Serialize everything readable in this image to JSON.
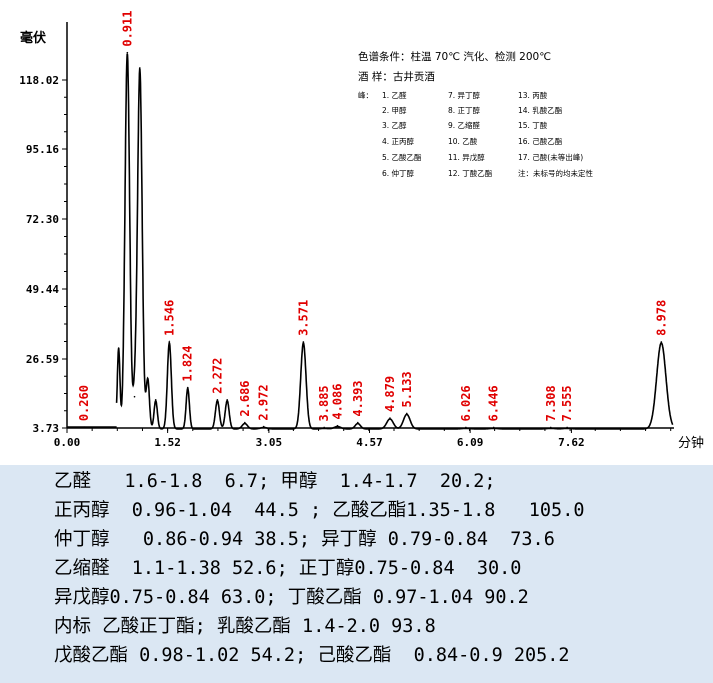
{
  "chart_data": {
    "type": "line",
    "ylabel": "毫伏",
    "xlabel": "分钟",
    "y_ticks": [
      "118.02",
      "95.16",
      "72.30",
      "49.44",
      "26.59",
      "3.73"
    ],
    "x_ticks": [
      "0.00",
      "1.52",
      "3.05",
      "4.57",
      "6.09",
      "7.62"
    ],
    "xlim": [
      0.0,
      9.2
    ],
    "ylim": [
      3.73,
      118.02
    ],
    "grid": false,
    "peaks": [
      {
        "rt": 0.26,
        "label": "0.260",
        "height": 4.0,
        "width": 0.05
      },
      {
        "rt": 0.78,
        "label": "",
        "height": 30.0,
        "width": 0.02
      },
      {
        "rt": 0.911,
        "label": "0.911",
        "height": 127.0,
        "width": 0.035
      },
      {
        "rt": 1.02,
        "label": "",
        "height": 14.0,
        "width": 0.025
      },
      {
        "rt": 1.1,
        "label": "",
        "height": 122.0,
        "width": 0.035
      },
      {
        "rt": 1.22,
        "label": "",
        "height": 20.0,
        "width": 0.025
      },
      {
        "rt": 1.34,
        "label": "",
        "height": 13.0,
        "width": 0.025
      },
      {
        "rt": 1.546,
        "label": "1.546",
        "height": 32.0,
        "width": 0.03
      },
      {
        "rt": 1.824,
        "label": "1.824",
        "height": 17.0,
        "width": 0.025
      },
      {
        "rt": 2.272,
        "label": "2.272",
        "height": 13.0,
        "width": 0.03
      },
      {
        "rt": 2.42,
        "label": "",
        "height": 13.0,
        "width": 0.03
      },
      {
        "rt": 2.686,
        "label": "2.686",
        "height": 5.5,
        "width": 0.04
      },
      {
        "rt": 2.972,
        "label": "2.972",
        "height": 4.2,
        "width": 0.05
      },
      {
        "rt": 3.571,
        "label": "3.571",
        "height": 32.0,
        "width": 0.04
      },
      {
        "rt": 3.885,
        "label": "3.885",
        "height": 3.9,
        "width": 0.05
      },
      {
        "rt": 4.086,
        "label": "4.086",
        "height": 4.5,
        "width": 0.05
      },
      {
        "rt": 4.393,
        "label": "4.393",
        "height": 5.5,
        "width": 0.04
      },
      {
        "rt": 4.879,
        "label": "4.879",
        "height": 7.0,
        "width": 0.05
      },
      {
        "rt": 5.133,
        "label": "5.133",
        "height": 8.5,
        "width": 0.05
      },
      {
        "rt": 6.026,
        "label": "6.026",
        "height": 3.9,
        "width": 0.06
      },
      {
        "rt": 6.446,
        "label": "6.446",
        "height": 3.9,
        "width": 0.06
      },
      {
        "rt": 7.308,
        "label": "7.308",
        "height": 3.9,
        "width": 0.06
      },
      {
        "rt": 7.555,
        "label": "7.555",
        "height": 3.9,
        "width": 0.06
      },
      {
        "rt": 8.978,
        "label": "8.978",
        "height": 32.0,
        "width": 0.07
      }
    ]
  },
  "conditions": {
    "line1": "色谱条件：柱温 70℃  汽化、检测 200℃",
    "line2": "酒      样：古井贡酒"
  },
  "peak_list": {
    "head": "峰：",
    "items": [
      "1. 乙醛",
      "7. 异丁醇",
      "13. 丙酸",
      "2. 甲醇",
      "8. 正丁醇",
      "14. 乳酸乙酯",
      "3. 乙醇",
      "9. 乙缩醛",
      "15. 丁酸",
      "4. 正丙醇",
      "10. 乙酸",
      "16. 己酸乙酯",
      "5. 乙酸乙酯",
      "11. 异戊醇",
      "17. 己酸(未等出峰)",
      "6. 仲丁醇",
      "12. 丁酸乙酯",
      "注：未标号的均未定性"
    ]
  },
  "data_lines": [
    "乙醛   1.6-1.8  6.7; 甲醇  1.4-1.7  20.2;",
    "正丙醇  0.96-1.04  44.5 ; 乙酸乙酯1.35-1.8   105.0",
    "仲丁醇   0.86-0.94 38.5; 异丁醇 0.79-0.84  73.6",
    "乙缩醛  1.1-1.38 52.6; 正丁醇0.75-0.84  30.0",
    "异戊醇0.75-0.84 63.0; 丁酸乙酯 0.97-1.04 90.2",
    "内标 乙酸正丁酯; 乳酸乙酯 1.4-2.0 93.8",
    "戊酸乙酯 0.98-1.02 54.2; 己酸乙酯  0.84-0.9 205.2"
  ]
}
